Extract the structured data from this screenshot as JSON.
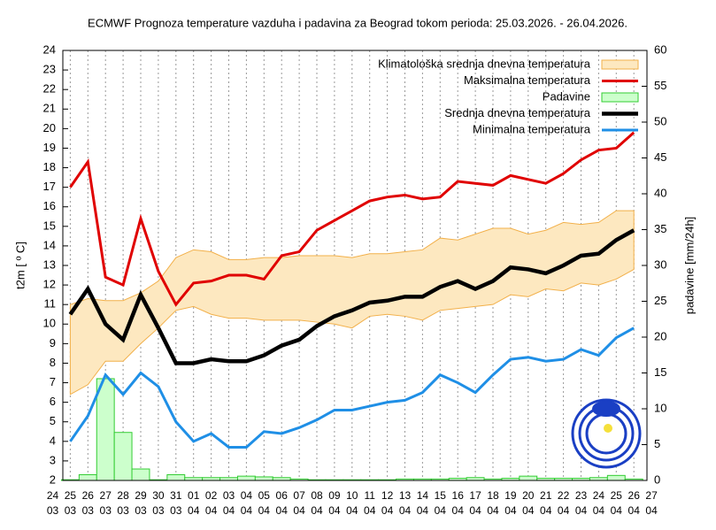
{
  "chart_data": {
    "type": "line",
    "title": "ECMWF Prognoza temperature vazduha i padavina za Beograd tokom perioda: 25.03.2026. - 26.04.2026.",
    "ylabel": "t2m [ º C]",
    "y2label": "padavine [mm/24h]",
    "categories": [
      "24",
      "25",
      "26",
      "27",
      "28",
      "29",
      "30",
      "31",
      "01",
      "02",
      "03",
      "04",
      "05",
      "06",
      "07",
      "08",
      "09",
      "10",
      "11",
      "12",
      "13",
      "14",
      "15",
      "16",
      "17",
      "18",
      "19",
      "20",
      "21",
      "22",
      "23",
      "24",
      "25",
      "26",
      "27"
    ],
    "category_months": [
      "03",
      "03",
      "03",
      "03",
      "03",
      "03",
      "03",
      "03",
      "04",
      "04",
      "04",
      "04",
      "04",
      "04",
      "04",
      "04",
      "04",
      "04",
      "04",
      "04",
      "04",
      "04",
      "04",
      "04",
      "04",
      "04",
      "04",
      "04",
      "04",
      "04",
      "04",
      "04",
      "04",
      "04",
      "04"
    ],
    "ylim": [
      2,
      24
    ],
    "yticks": [
      2,
      3,
      4,
      5,
      6,
      7,
      8,
      9,
      10,
      11,
      12,
      13,
      14,
      15,
      16,
      17,
      18,
      19,
      20,
      21,
      22,
      23,
      24
    ],
    "y2lim": [
      0,
      60
    ],
    "y2ticks": [
      0,
      5,
      10,
      15,
      20,
      25,
      30,
      35,
      40,
      45,
      50,
      55,
      60
    ],
    "legend": "upper right",
    "series": [
      {
        "name": "Klimatološka srednja dnevna temperatura",
        "kind": "band",
        "color": "#f2b04a",
        "fill": "#fde8c0",
        "lower": [
          null,
          6.4,
          6.9,
          8.1,
          8.1,
          9.0,
          9.8,
          10.7,
          10.9,
          10.5,
          10.3,
          10.3,
          10.2,
          10.2,
          10.2,
          10.1,
          10.0,
          9.8,
          10.4,
          10.5,
          10.4,
          10.2,
          10.7,
          10.8,
          10.9,
          11.0,
          11.5,
          11.4,
          11.8,
          11.7,
          12.1,
          12.0,
          12.3,
          12.8,
          null
        ],
        "upper": [
          null,
          11.0,
          11.3,
          11.2,
          11.2,
          11.6,
          12.2,
          13.4,
          13.8,
          13.7,
          13.3,
          13.3,
          13.4,
          13.4,
          13.5,
          13.5,
          13.5,
          13.4,
          13.6,
          13.6,
          13.7,
          13.8,
          14.4,
          14.3,
          14.6,
          14.9,
          14.9,
          14.6,
          14.8,
          15.2,
          15.1,
          15.2,
          15.8,
          15.8,
          null
        ]
      },
      {
        "name": "Maksimalna temperatura",
        "kind": "line",
        "color": "#e00000",
        "width": 3,
        "values": [
          null,
          17.0,
          18.3,
          12.4,
          12.0,
          15.4,
          12.7,
          11.0,
          12.1,
          12.2,
          12.5,
          12.5,
          12.3,
          13.5,
          13.7,
          14.8,
          15.3,
          15.8,
          16.3,
          16.5,
          16.6,
          16.4,
          16.5,
          17.3,
          17.2,
          17.1,
          17.6,
          17.4,
          17.2,
          17.7,
          18.4,
          18.9,
          19.0,
          19.8,
          null
        ]
      },
      {
        "name": "Padavine",
        "kind": "bar",
        "axis": "y2",
        "color": "#33cc33",
        "fill": "#ccffcc",
        "values": [
          null,
          0.1,
          0.8,
          14.2,
          6.7,
          1.6,
          0.1,
          0.8,
          0.4,
          0.4,
          0.4,
          0.6,
          0.5,
          0.4,
          0.2,
          0.1,
          0.1,
          0.1,
          0.1,
          0.1,
          0.2,
          0.2,
          0.2,
          0.3,
          0.4,
          0.2,
          0.3,
          0.6,
          0.3,
          0.3,
          0.3,
          0.4,
          0.7,
          0.2,
          null
        ]
      },
      {
        "name": "Srednja dnevna temperatura",
        "kind": "line",
        "color": "#000000",
        "width": 4.5,
        "values": [
          null,
          10.5,
          11.8,
          10.0,
          9.2,
          11.5,
          9.8,
          8.0,
          8.0,
          8.2,
          8.1,
          8.1,
          8.4,
          8.9,
          9.2,
          9.9,
          10.4,
          10.7,
          11.1,
          11.2,
          11.4,
          11.4,
          11.9,
          12.2,
          11.8,
          12.2,
          12.9,
          12.8,
          12.6,
          13.0,
          13.5,
          13.6,
          14.3,
          14.8,
          null
        ]
      },
      {
        "name": "Minimalna temperatura",
        "kind": "line",
        "color": "#1f8fe6",
        "width": 3,
        "values": [
          null,
          4.0,
          5.3,
          7.4,
          6.4,
          7.5,
          6.8,
          5.0,
          4.0,
          4.4,
          3.7,
          3.7,
          4.5,
          4.4,
          4.7,
          5.1,
          5.6,
          5.6,
          5.8,
          6.0,
          6.1,
          6.5,
          7.4,
          7.0,
          6.5,
          7.4,
          8.2,
          8.3,
          8.1,
          8.2,
          8.7,
          8.4,
          9.3,
          9.8,
          null
        ]
      }
    ]
  }
}
